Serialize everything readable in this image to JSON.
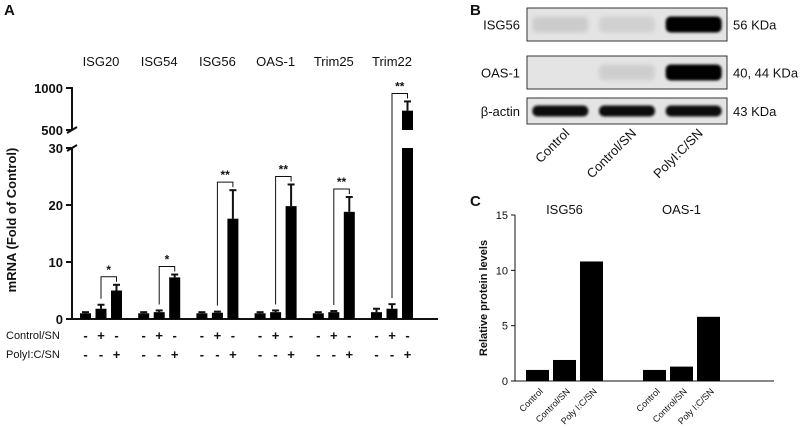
{
  "panels": {
    "a": "A",
    "b": "B",
    "c": "C"
  },
  "chart_data": [
    {
      "panel": "A",
      "type": "bar",
      "ylabel": "mRNA (Fold of Control)",
      "y_axis_break": true,
      "yticks_lower": [
        "0",
        "10",
        "20",
        "30"
      ],
      "yticks_upper": [
        "500",
        "1000"
      ],
      "row_labels": [
        "Control/SN",
        "PolyI:C/SN"
      ],
      "conditions": [
        {
          "control_sn": "-",
          "polyic_sn": "-"
        },
        {
          "control_sn": "+",
          "polyic_sn": "-"
        },
        {
          "control_sn": "-",
          "polyic_sn": "+"
        }
      ],
      "groups": [
        {
          "name": "ISG20",
          "values": [
            1.0,
            1.8,
            5.0
          ],
          "errors": [
            0.2,
            0.7,
            1.0
          ],
          "significance": "*"
        },
        {
          "name": "ISG54",
          "values": [
            1.0,
            1.2,
            7.3
          ],
          "errors": [
            0.2,
            0.3,
            0.5
          ],
          "significance": "*"
        },
        {
          "name": "ISG56",
          "values": [
            1.0,
            1.1,
            17.6
          ],
          "errors": [
            0.2,
            0.2,
            5.0
          ],
          "significance": "**"
        },
        {
          "name": "OAS-1",
          "values": [
            1.0,
            1.2,
            19.8
          ],
          "errors": [
            0.2,
            0.3,
            3.8
          ],
          "significance": "**"
        },
        {
          "name": "Trim25",
          "values": [
            1.0,
            1.2,
            18.8
          ],
          "errors": [
            0.2,
            0.2,
            2.6
          ],
          "significance": "**"
        },
        {
          "name": "Trim22",
          "values": [
            1.2,
            1.8,
            730
          ],
          "errors": [
            0.6,
            0.8,
            110
          ],
          "significance": "**"
        }
      ]
    },
    {
      "panel": "C",
      "type": "bar",
      "ylabel": "Relative protein levels",
      "ylim": [
        0,
        15
      ],
      "yticks": [
        "0",
        "5",
        "10",
        "15"
      ],
      "groups": [
        {
          "name": "ISG56",
          "categories": [
            "Control",
            "Control/SN",
            "Poly I:C/SN"
          ],
          "values": [
            1.0,
            1.9,
            10.8
          ]
        },
        {
          "name": "OAS-1",
          "categories": [
            "Control",
            "Control/SN",
            "Poly I:C/SN"
          ],
          "values": [
            1.0,
            1.3,
            5.8
          ]
        }
      ]
    }
  ],
  "blot": {
    "rows": [
      {
        "protein": "ISG56",
        "size": "56 KDa",
        "intensities": [
          0.12,
          0.08,
          1.0
        ]
      },
      {
        "protein": "OAS-1",
        "size": "40, 44 KDa",
        "intensities": [
          0.0,
          0.1,
          1.0
        ]
      },
      {
        "protein": "β-actin",
        "size": "43 KDa",
        "intensities": [
          0.95,
          0.95,
          0.95
        ]
      }
    ],
    "lanes": [
      "Control",
      "Control/SN",
      "PolyI:C/SN"
    ]
  },
  "colors": {
    "bar": "#000000",
    "blot_background": "#e4e4e4"
  }
}
